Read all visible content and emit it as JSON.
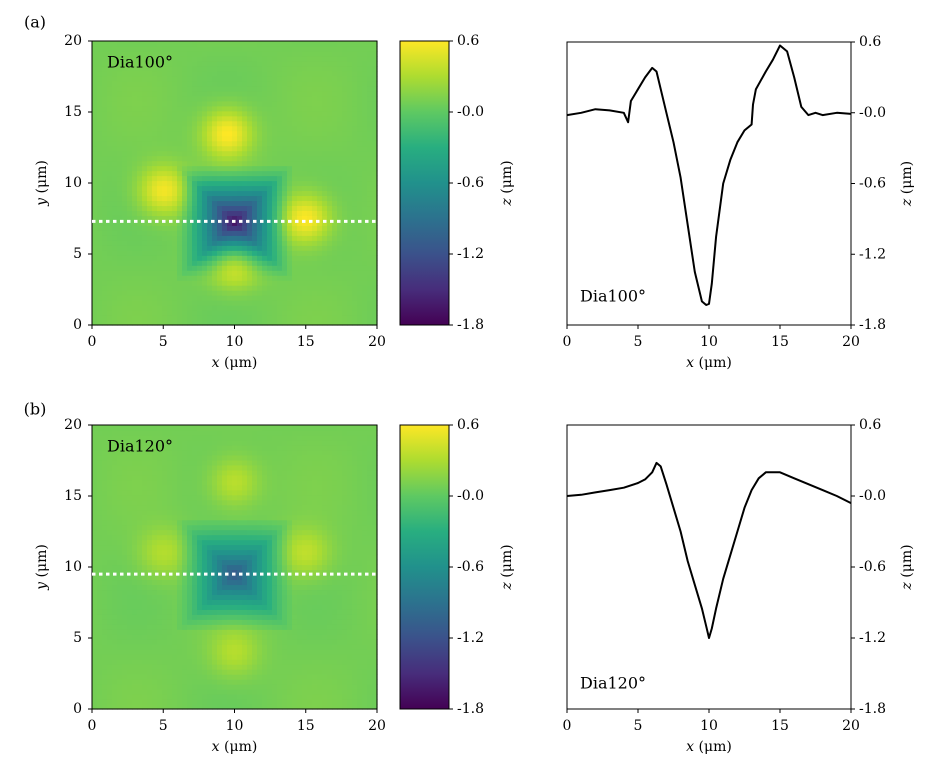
{
  "chart_data": [
    {
      "type": "heatmap",
      "panel_label": "(a)",
      "annotation": "Dia100°",
      "xlabel_var": "x",
      "xlabel_unit": " (μm)",
      "ylabel_var": "y",
      "ylabel_unit": " (μm)",
      "xlim": [
        0,
        20
      ],
      "ylim": [
        0,
        20
      ],
      "xticks": [
        0,
        5,
        10,
        15,
        20
      ],
      "yticks": [
        0,
        5,
        10,
        15,
        20
      ],
      "profile_line_y": 7.3,
      "indent_center": [
        10,
        7.3
      ],
      "indent_halfwidth": 4,
      "indent_depth": -1.8,
      "pileup": [
        {
          "x": 9.5,
          "y": 13.5,
          "z": 0.55
        },
        {
          "x": 10,
          "y": 4.5,
          "z": 0.5
        },
        {
          "x": 15,
          "y": 7.5,
          "z": 0.55
        },
        {
          "x": 5,
          "y": 9.5,
          "z": 0.5
        }
      ]
    },
    {
      "type": "line",
      "annotation": "Dia100°",
      "xlabel_var": "x",
      "xlabel_unit": " (μm)",
      "ylabel_var": "z",
      "ylabel_unit": " (μm)",
      "xlim": [
        0,
        20
      ],
      "ylim": [
        -1.8,
        0.6
      ],
      "xticks": [
        0,
        5,
        10,
        15,
        20
      ],
      "yticks": [
        0.6,
        -0.0,
        -0.6,
        -1.2,
        -1.8
      ],
      "ytick_labels": [
        "0.6",
        "-0.0",
        "-0.6",
        "-1.2",
        "-1.8"
      ],
      "x": [
        0,
        1,
        2,
        3,
        4,
        4.3,
        4.5,
        5,
        5.5,
        6,
        6.3,
        7,
        7.5,
        8,
        8.5,
        9,
        9.5,
        9.8,
        10,
        10.2,
        10.5,
        11,
        11.5,
        12,
        12.5,
        13,
        13.1,
        13.3,
        14,
        14.5,
        15,
        15.5,
        16,
        16.5,
        17,
        17.5,
        18,
        19,
        20
      ],
      "y": [
        -0.02,
        0.0,
        0.03,
        0.02,
        0.0,
        -0.08,
        0.1,
        0.2,
        0.3,
        0.38,
        0.35,
        0.0,
        -0.25,
        -0.55,
        -0.95,
        -1.35,
        -1.6,
        -1.63,
        -1.62,
        -1.45,
        -1.05,
        -0.6,
        -0.4,
        -0.25,
        -0.15,
        -0.1,
        0.07,
        0.2,
        0.35,
        0.45,
        0.57,
        0.52,
        0.3,
        0.05,
        -0.02,
        0.0,
        -0.02,
        0.0,
        -0.01
      ]
    },
    {
      "type": "heatmap",
      "panel_label": "(b)",
      "annotation": "Dia120°",
      "xlabel_var": "x",
      "xlabel_unit": " (μm)",
      "ylabel_var": "y",
      "ylabel_unit": " (μm)",
      "xlim": [
        0,
        20
      ],
      "ylim": [
        0,
        20
      ],
      "xticks": [
        0,
        5,
        10,
        15,
        20
      ],
      "yticks": [
        0,
        5,
        10,
        15,
        20
      ],
      "profile_line_y": 9.5,
      "indent_center": [
        10,
        9.5
      ],
      "indent_halfwidth": 4,
      "indent_depth": -1.2,
      "pileup": [
        {
          "x": 10,
          "y": 16,
          "z": 0.3
        },
        {
          "x": 10,
          "y": 4,
          "z": 0.25
        },
        {
          "x": 15,
          "y": 11,
          "z": 0.3
        },
        {
          "x": 5,
          "y": 11,
          "z": 0.25
        }
      ]
    },
    {
      "type": "line",
      "annotation": "Dia120°",
      "xlabel_var": "x",
      "xlabel_unit": " (μm)",
      "ylabel_var": "z",
      "ylabel_unit": " (μm)",
      "xlim": [
        0,
        20
      ],
      "ylim": [
        -1.8,
        0.6
      ],
      "xticks": [
        0,
        5,
        10,
        15,
        20
      ],
      "yticks": [
        0.6,
        -0.0,
        -0.6,
        -1.2,
        -1.8
      ],
      "ytick_labels": [
        "0.6",
        "-0.0",
        "-0.6",
        "-1.2",
        "-1.8"
      ],
      "x": [
        0,
        1,
        2,
        3,
        4,
        5,
        5.5,
        6,
        6.3,
        6.6,
        7,
        7.5,
        8,
        8.5,
        9,
        9.5,
        9.8,
        10,
        10.2,
        10.5,
        11,
        11.5,
        12,
        12.5,
        13,
        13.5,
        14,
        14.5,
        15,
        16,
        17,
        18,
        19,
        20
      ],
      "y": [
        0.0,
        0.01,
        0.03,
        0.05,
        0.07,
        0.11,
        0.14,
        0.2,
        0.28,
        0.25,
        0.1,
        -0.1,
        -0.3,
        -0.55,
        -0.75,
        -0.95,
        -1.1,
        -1.2,
        -1.12,
        -0.95,
        -0.7,
        -0.5,
        -0.3,
        -0.1,
        0.05,
        0.15,
        0.2,
        0.2,
        0.2,
        0.15,
        0.1,
        0.05,
        0.0,
        -0.06
      ]
    }
  ],
  "colorbar": {
    "ticks": [
      0.6,
      -0.0,
      -0.6,
      -1.2,
      -1.8
    ],
    "tick_labels": [
      "0.6",
      "-0.0",
      "-0.6",
      "-1.2",
      "-1.8"
    ],
    "label_var": "z",
    "label_unit": " (μm)",
    "colormap": "viridis",
    "range": [
      -1.8,
      0.6
    ]
  }
}
